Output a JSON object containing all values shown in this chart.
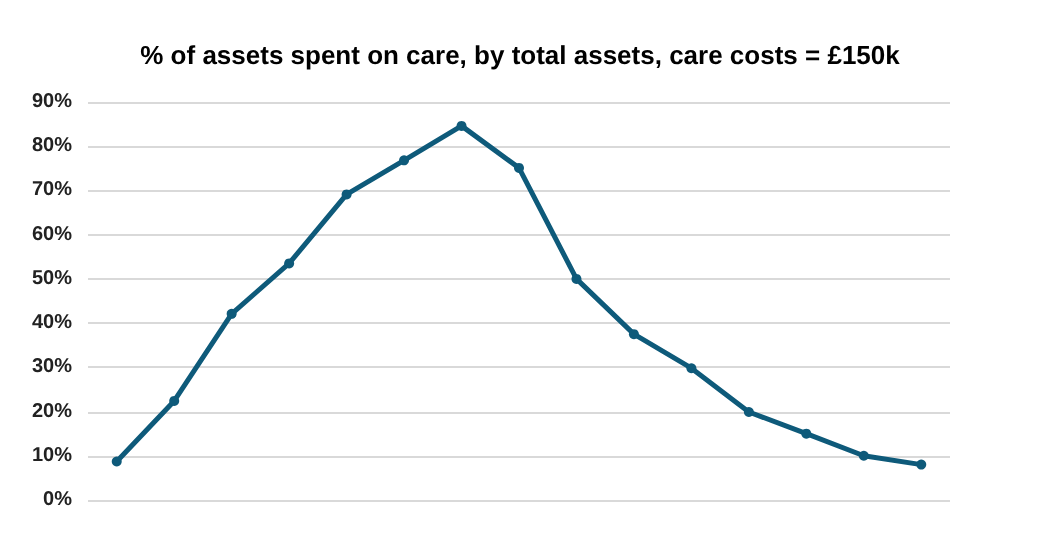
{
  "chart_data": {
    "type": "line",
    "title": "% of assets spent on care, by total assets, care costs = £150k",
    "categories": [
      null,
      null,
      null,
      null,
      null,
      null,
      null,
      null,
      null,
      null,
      null,
      null,
      null,
      null,
      null
    ],
    "series": [
      {
        "color": "#0e5a7a",
        "values": [
          8.7,
          22.4,
          42.1,
          53.5,
          69.1,
          76.8,
          84.6,
          75.1,
          50,
          37.5,
          29.8,
          19.9,
          15,
          10,
          8
        ]
      }
    ],
    "ylim": [
      0,
      90
    ],
    "yticks": [
      {
        "value": 0,
        "label": "0%"
      },
      {
        "value": 10,
        "label": "10%"
      },
      {
        "value": 20,
        "label": "20%"
      },
      {
        "value": 30,
        "label": "30%"
      },
      {
        "value": 40,
        "label": "40%"
      },
      {
        "value": 50,
        "label": "50%"
      },
      {
        "value": 60,
        "label": "60%"
      },
      {
        "value": 70,
        "label": "70%"
      },
      {
        "value": 80,
        "label": "80%"
      },
      {
        "value": 90,
        "label": "90%"
      }
    ],
    "tick_labels": "y",
    "grid": "y",
    "marker": "circle",
    "line_style": "solid"
  }
}
